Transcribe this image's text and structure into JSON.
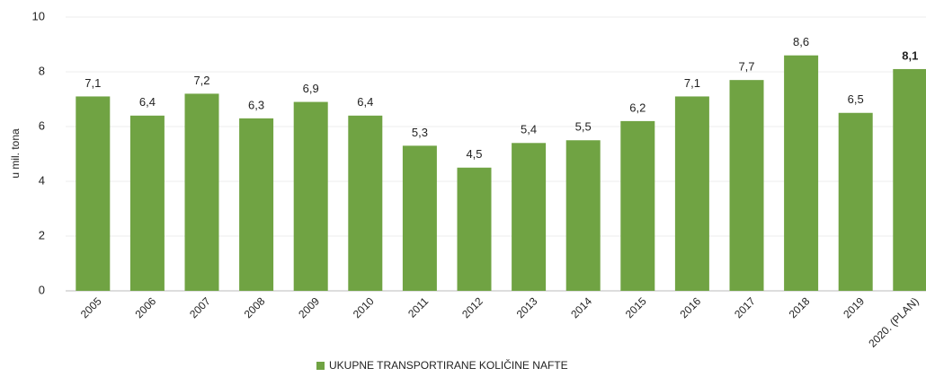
{
  "chart_data": {
    "type": "bar",
    "y_label": "u mil. tona",
    "categories": [
      "2005",
      "2006",
      "2007",
      "2008",
      "2009",
      "2010",
      "2011",
      "2012",
      "2013",
      "2014",
      "2015",
      "2016",
      "2017",
      "2018",
      "2019",
      "2020. (PLAN)"
    ],
    "series": [
      {
        "name": "UKUPNE TRANSPORTIRANE KOLIČINE NAFTE",
        "color": "#70a343",
        "values": [
          7.1,
          6.4,
          7.2,
          6.3,
          6.9,
          6.4,
          5.3,
          4.5,
          5.4,
          5.5,
          6.2,
          7.1,
          7.7,
          8.6,
          6.5,
          8.1
        ],
        "value_labels": [
          "7,1",
          "6,4",
          "7,2",
          "6,3",
          "6,9",
          "6,4",
          "5,3",
          "4,5",
          "5,4",
          "5,5",
          "6,2",
          "7,1",
          "7,7",
          "8,6",
          "6,5",
          "8,1"
        ]
      }
    ],
    "ylim": [
      0,
      10
    ],
    "yticks": [
      0,
      2,
      4,
      6,
      8,
      10
    ],
    "grid": true,
    "legend": "bottom"
  }
}
